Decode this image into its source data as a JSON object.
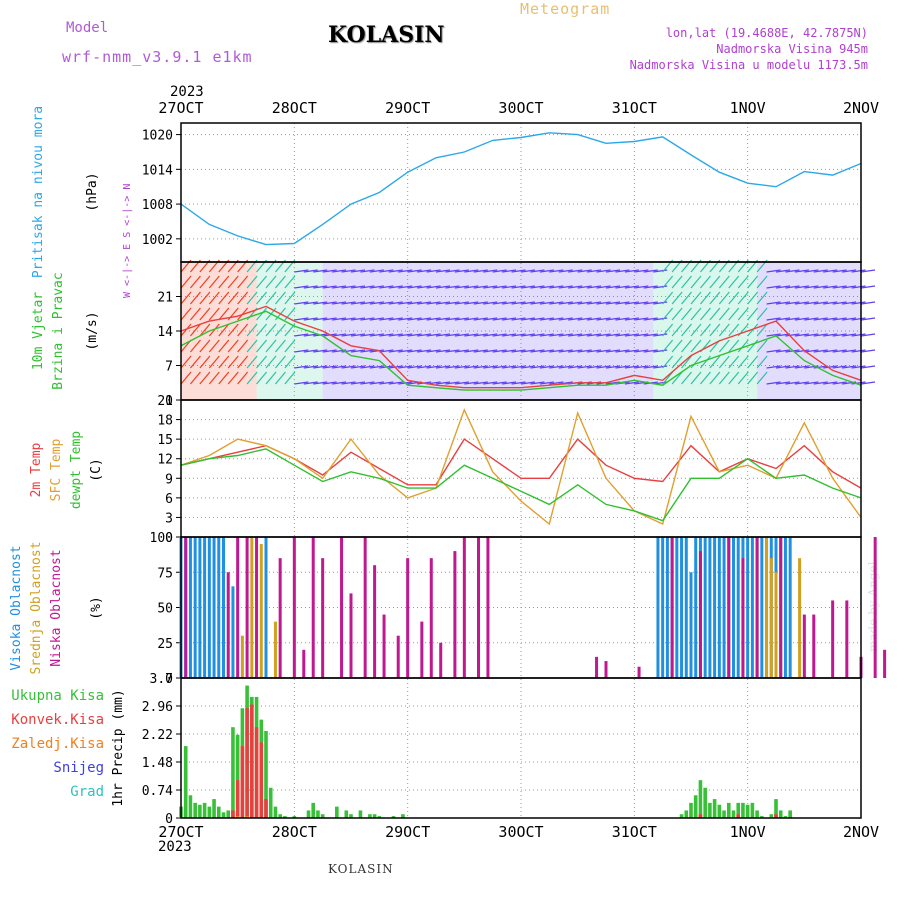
{
  "header": {
    "model_title": "Model",
    "model_name": "wrf-nmm_v3.9.1 e1km",
    "station": "KOLASIN",
    "meteogram_title": "Meteogram",
    "coords": "lon,lat (19.4688E, 42.7875N)",
    "elevation": "Nadmorska Visina 945m",
    "model_elevation": "Nadmorska Visina u modelu 1173.5m",
    "year_top": "2023",
    "year_bottom": "2023",
    "footer": "KOLASIN",
    "credit": "made by Angel"
  },
  "colors": {
    "pressure": "#2ca8e8",
    "t2m": "#e84040",
    "sfc": "#e0a030",
    "dewpt": "#30c030",
    "high_cloud": "#2090e0",
    "mid_cloud": "#d0a020",
    "low_cloud": "#c01890",
    "total_precip": "#38c038",
    "conv_precip": "#e84040",
    "frozen_precip": "#f08020",
    "snow": "#4040e0",
    "hail": "#30c0c0",
    "wind_low": "#6040f0",
    "wind_high": "#f04020",
    "grid": "#999999"
  },
  "chart_data": [
    {
      "type": "line",
      "panel": "pressure",
      "ylabel_lines": [
        "Pritisak na nivou mora",
        "(hPa)"
      ],
      "ylim": [
        998,
        1022
      ],
      "yticks": [
        1002,
        1008,
        1014,
        1020
      ],
      "x_days": [
        "27OCT",
        "28OCT",
        "29OCT",
        "30OCT",
        "31OCT",
        "1NOV",
        "2NOV"
      ],
      "x_hours": [
        0,
        6,
        12,
        18,
        24,
        30,
        36,
        42,
        48,
        54,
        60,
        66,
        72,
        78,
        84,
        90,
        96,
        102,
        108,
        114,
        120,
        126,
        132,
        138,
        144
      ],
      "series": [
        {
          "key": "pressure",
          "values": [
            1008,
            1004.5,
            1002.5,
            1001,
            1001.2,
            1004.5,
            1008,
            1010,
            1013.5,
            1016,
            1017,
            1019,
            1019.5,
            1020.3,
            1020,
            1018.5,
            1018.8,
            1019.6,
            1016.5,
            1013.5,
            1011.6,
            1011,
            1013.6,
            1013,
            1015
          ]
        }
      ]
    },
    {
      "type": "line",
      "panel": "wind",
      "ylabel_lines": [
        "10m Vjetar",
        "Brzina i Pravac",
        "(m/s)"
      ],
      "ylim": [
        0,
        28
      ],
      "yticks": [
        0,
        7,
        14,
        21
      ],
      "compass": "W <-|-> E  S <-|-> N",
      "x_hours": [
        0,
        6,
        12,
        18,
        24,
        30,
        36,
        42,
        48,
        54,
        60,
        66,
        72,
        78,
        84,
        90,
        96,
        102,
        108,
        114,
        120,
        126,
        132,
        138,
        144
      ],
      "series": [
        {
          "key": "dewpt",
          "name": "mean speed",
          "values": [
            11,
            14,
            16,
            18,
            15,
            13,
            9,
            8,
            3,
            2.5,
            2,
            2,
            2,
            2.5,
            3,
            3,
            4,
            3,
            7,
            9,
            11,
            13,
            8,
            5,
            3
          ]
        },
        {
          "key": "t2m",
          "name": "gust",
          "values": [
            14,
            16,
            17,
            19,
            16,
            14,
            11,
            10,
            4,
            3,
            2.5,
            2.5,
            2.5,
            3,
            3.5,
            3.5,
            5,
            4,
            9,
            12,
            14,
            16,
            10,
            6,
            4
          ]
        }
      ]
    },
    {
      "type": "line",
      "panel": "temperature",
      "ylabel_lines": [
        "2m Temp",
        "SFC Temp",
        "dewpt Temp",
        "(C)"
      ],
      "ylim": [
        0,
        21
      ],
      "yticks": [
        0,
        3,
        6,
        9,
        12,
        15,
        18,
        21
      ],
      "x_hours": [
        0,
        6,
        12,
        18,
        24,
        30,
        36,
        42,
        48,
        54,
        60,
        66,
        72,
        78,
        84,
        90,
        96,
        102,
        108,
        114,
        120,
        126,
        132,
        138,
        144
      ],
      "series": [
        {
          "key": "t2m",
          "name": "2m Temp",
          "values": [
            11,
            12,
            13,
            14,
            12,
            9.5,
            13,
            10.5,
            8,
            8,
            15,
            12,
            9,
            9,
            15,
            11,
            9,
            8.5,
            14,
            10,
            12,
            10.5,
            14,
            10,
            7.5
          ]
        },
        {
          "key": "sfc",
          "name": "SFC Temp",
          "values": [
            11,
            12.5,
            15,
            14,
            12,
            9,
            15,
            9.5,
            6,
            7.5,
            19.5,
            10,
            5.5,
            2,
            19,
            9,
            4,
            2,
            18.5,
            10,
            11,
            9,
            17.5,
            9,
            3
          ]
        },
        {
          "key": "dewpt",
          "name": "dewpt Temp",
          "values": [
            11,
            12,
            12.5,
            13.5,
            11,
            8.5,
            10,
            9,
            7.5,
            7.5,
            11,
            9,
            7,
            5,
            8,
            5,
            4,
            2.5,
            9,
            9,
            12,
            9,
            9.5,
            7.5,
            6
          ]
        }
      ]
    },
    {
      "type": "bar",
      "panel": "cloud",
      "ylabel_lines": [
        "Visoka Oblacnost",
        "Srednja Oblacnost",
        "Niska Oblacnost",
        "(%)"
      ],
      "ylim": [
        0,
        100
      ],
      "yticks": [
        0,
        25,
        50,
        75,
        100
      ],
      "series": [
        {
          "key": "high_cloud",
          "name": "Visoka Oblacnost",
          "values": [
            [
              0,
              100
            ],
            [
              1,
              100
            ],
            [
              2,
              100
            ],
            [
              3,
              100
            ],
            [
              4,
              100
            ],
            [
              5,
              100
            ],
            [
              6,
              100
            ],
            [
              7,
              100
            ],
            [
              8,
              100
            ],
            [
              9,
              100
            ],
            [
              11,
              65
            ],
            [
              18,
              100
            ],
            [
              101,
              100
            ],
            [
              102,
              100
            ],
            [
              103,
              100
            ],
            [
              104,
              100
            ],
            [
              105,
              100
            ],
            [
              106,
              100
            ],
            [
              107,
              100
            ],
            [
              108,
              75
            ],
            [
              109,
              100
            ],
            [
              110,
              100
            ],
            [
              111,
              100
            ],
            [
              112,
              100
            ],
            [
              113,
              100
            ],
            [
              114,
              100
            ],
            [
              115,
              100
            ],
            [
              116,
              100
            ],
            [
              117,
              100
            ],
            [
              118,
              100
            ],
            [
              119,
              100
            ],
            [
              120,
              100
            ],
            [
              121,
              100
            ],
            [
              122,
              100
            ],
            [
              123,
              100
            ],
            [
              124,
              100
            ],
            [
              125,
              100
            ],
            [
              126,
              100
            ],
            [
              127,
              100
            ],
            [
              128,
              100
            ],
            [
              129,
              100
            ]
          ]
        },
        {
          "key": "mid_cloud",
          "name": "Srednja Oblacnost",
          "values": [
            [
              13,
              30
            ],
            [
              15,
              100
            ],
            [
              17,
              95
            ],
            [
              20,
              40
            ],
            [
              124,
              100
            ],
            [
              125,
              85
            ],
            [
              126,
              75
            ],
            [
              131,
              85
            ]
          ]
        },
        {
          "key": "low_cloud",
          "name": "Niska Oblacnost",
          "values": [
            [
              1,
              100
            ],
            [
              10,
              75
            ],
            [
              12,
              100
            ],
            [
              14,
              100
            ],
            [
              16,
              100
            ],
            [
              21,
              85
            ],
            [
              24,
              100
            ],
            [
              26,
              20
            ],
            [
              28,
              100
            ],
            [
              30,
              85
            ],
            [
              34,
              100
            ],
            [
              36,
              60
            ],
            [
              39,
              100
            ],
            [
              41,
              80
            ],
            [
              43,
              45
            ],
            [
              46,
              30
            ],
            [
              48,
              85
            ],
            [
              51,
              40
            ],
            [
              53,
              85
            ],
            [
              55,
              25
            ],
            [
              58,
              90
            ],
            [
              60,
              100
            ],
            [
              63,
              100
            ],
            [
              65,
              100
            ],
            [
              88,
              15
            ],
            [
              90,
              12
            ],
            [
              97,
              8
            ],
            [
              104,
              100
            ],
            [
              110,
              90
            ],
            [
              116,
              100
            ],
            [
              119,
              85
            ],
            [
              122,
              100
            ],
            [
              127,
              100
            ],
            [
              132,
              45
            ],
            [
              134,
              45
            ],
            [
              138,
              55
            ],
            [
              141,
              55
            ],
            [
              144,
              15
            ],
            [
              147,
              100
            ],
            [
              149,
              20
            ]
          ]
        }
      ]
    },
    {
      "type": "bar",
      "panel": "precip",
      "ylabel": "1hr Precip (mm)",
      "ylim": [
        0,
        3.7
      ],
      "yticks": [
        0,
        0.74,
        1.48,
        2.22,
        2.96,
        3.7
      ],
      "legend": [
        "Ukupna Kisa",
        "Konvek.Kisa",
        "Zaledj.Kisa",
        "Snijeg",
        "Grad"
      ],
      "series": [
        {
          "key": "total_precip",
          "name": "Ukupna Kisa",
          "values": [
            [
              0,
              0.3
            ],
            [
              1,
              1.9
            ],
            [
              2,
              0.6
            ],
            [
              3,
              0.4
            ],
            [
              4,
              0.35
            ],
            [
              5,
              0.4
            ],
            [
              6,
              0.3
            ],
            [
              7,
              0.5
            ],
            [
              8,
              0.3
            ],
            [
              9,
              0.15
            ],
            [
              10,
              0.2
            ],
            [
              11,
              2.4
            ],
            [
              12,
              2.2
            ],
            [
              13,
              2.9
            ],
            [
              14,
              3.5
            ],
            [
              15,
              3.2
            ],
            [
              16,
              3.2
            ],
            [
              17,
              2.6
            ],
            [
              18,
              2.3
            ],
            [
              19,
              0.8
            ],
            [
              20,
              0.3
            ],
            [
              21,
              0.1
            ],
            [
              22,
              0.05
            ],
            [
              24,
              0.05
            ],
            [
              27,
              0.2
            ],
            [
              28,
              0.4
            ],
            [
              29,
              0.2
            ],
            [
              30,
              0.1
            ],
            [
              33,
              0.3
            ],
            [
              35,
              0.2
            ],
            [
              36,
              0.1
            ],
            [
              38,
              0.2
            ],
            [
              40,
              0.1
            ],
            [
              41,
              0.1
            ],
            [
              42,
              0.05
            ],
            [
              45,
              0.05
            ],
            [
              47,
              0.1
            ],
            [
              106,
              0.1
            ],
            [
              107,
              0.2
            ],
            [
              108,
              0.4
            ],
            [
              109,
              0.6
            ],
            [
              110,
              1.0
            ],
            [
              111,
              0.8
            ],
            [
              112,
              0.4
            ],
            [
              113,
              0.5
            ],
            [
              114,
              0.35
            ],
            [
              115,
              0.2
            ],
            [
              116,
              0.4
            ],
            [
              117,
              0.2
            ],
            [
              118,
              0.4
            ],
            [
              119,
              0.4
            ],
            [
              120,
              0.35
            ],
            [
              121,
              0.4
            ],
            [
              122,
              0.2
            ],
            [
              123,
              0.05
            ],
            [
              125,
              0.1
            ],
            [
              126,
              0.5
            ],
            [
              127,
              0.2
            ],
            [
              128,
              0.05
            ],
            [
              129,
              0.2
            ]
          ]
        },
        {
          "key": "conv_precip",
          "name": "Konvek.Kisa",
          "values": [
            [
              11,
              0.2
            ],
            [
              12,
              1.0
            ],
            [
              13,
              1.9
            ],
            [
              14,
              2.9
            ],
            [
              15,
              3.0
            ],
            [
              16,
              2.4
            ],
            [
              17,
              2.0
            ],
            [
              18,
              0.5
            ],
            [
              110,
              0.1
            ],
            [
              118,
              0.1
            ],
            [
              126,
              0.1
            ]
          ]
        },
        {
          "key": "frozen_precip",
          "name": "Zaledj.Kisa",
          "values": [
            [
              12,
              0.05
            ],
            [
              14,
              0.05
            ]
          ]
        },
        {
          "key": "snow",
          "name": "Snijeg",
          "values": []
        },
        {
          "key": "hail",
          "name": "Grad",
          "values": []
        }
      ]
    }
  ]
}
